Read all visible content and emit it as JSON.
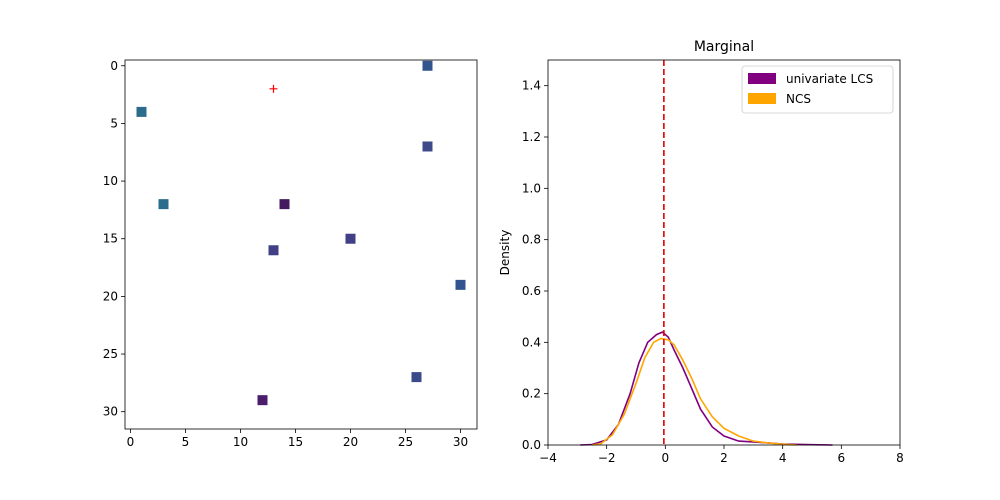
{
  "chart_data": [
    {
      "type": "scatter",
      "title": "",
      "xlabel": "",
      "ylabel": "",
      "xlim": [
        -0.5,
        31.5
      ],
      "ylim": [
        31.5,
        -0.5
      ],
      "y_inverted": true,
      "xticks": [
        0,
        5,
        10,
        15,
        20,
        25,
        30
      ],
      "yticks": [
        0,
        5,
        10,
        15,
        20,
        25,
        30
      ],
      "marker": "square",
      "points": [
        {
          "x": 27,
          "y": 0,
          "color": "#31548f"
        },
        {
          "x": 1,
          "y": 4,
          "color": "#2b6b8c"
        },
        {
          "x": 27,
          "y": 7,
          "color": "#3f4a8a"
        },
        {
          "x": 3,
          "y": 12,
          "color": "#2b6b8c"
        },
        {
          "x": 14,
          "y": 12,
          "color": "#451a5e"
        },
        {
          "x": 20,
          "y": 15,
          "color": "#413f85"
        },
        {
          "x": 13,
          "y": 16,
          "color": "#413f85"
        },
        {
          "x": 30,
          "y": 19,
          "color": "#31548f"
        },
        {
          "x": 26,
          "y": 27,
          "color": "#3b4b8a"
        },
        {
          "x": 12,
          "y": 29,
          "color": "#4a1e6b"
        }
      ],
      "target": {
        "x": 13,
        "y": 2,
        "marker": "+",
        "color": "#ff0000"
      }
    },
    {
      "type": "line",
      "title": "Marginal",
      "xlabel": "",
      "ylabel": "Density",
      "xlim": [
        -4,
        8
      ],
      "ylim": [
        0,
        1.5
      ],
      "xticks": [
        -4,
        -2,
        0,
        2,
        4,
        6,
        8
      ],
      "yticks": [
        0.0,
        0.2,
        0.4,
        0.6,
        0.8,
        1.0,
        1.2,
        1.4
      ],
      "ytick_labels": [
        "0.0",
        "0.2",
        "0.4",
        "0.6",
        "0.8",
        "1.0",
        "1.2",
        "1.4"
      ],
      "legend_position": "top-right",
      "vline": {
        "x": -0.05,
        "color": "#e00000",
        "style": "dashed"
      },
      "series": [
        {
          "name": "univariate LCS",
          "color": "#800080",
          "points": [
            [
              -2.9,
              0.0
            ],
            [
              -2.5,
              0.002
            ],
            [
              -2.0,
              0.02
            ],
            [
              -1.6,
              0.08
            ],
            [
              -1.2,
              0.2
            ],
            [
              -0.9,
              0.32
            ],
            [
              -0.6,
              0.4
            ],
            [
              -0.3,
              0.43
            ],
            [
              -0.1,
              0.44
            ],
            [
              0.1,
              0.42
            ],
            [
              0.3,
              0.37
            ],
            [
              0.6,
              0.3
            ],
            [
              0.9,
              0.22
            ],
            [
              1.2,
              0.14
            ],
            [
              1.6,
              0.07
            ],
            [
              2.0,
              0.035
            ],
            [
              2.5,
              0.015
            ],
            [
              3.0,
              0.012
            ],
            [
              3.5,
              0.008
            ],
            [
              4.0,
              0.004
            ],
            [
              5.0,
              0.001
            ],
            [
              5.7,
              0.0
            ]
          ]
        },
        {
          "name": "NCS",
          "color": "#ffa500",
          "points": [
            [
              -2.5,
              0.0
            ],
            [
              -2.2,
              0.005
            ],
            [
              -1.8,
              0.04
            ],
            [
              -1.4,
              0.12
            ],
            [
              -1.0,
              0.24
            ],
            [
              -0.7,
              0.34
            ],
            [
              -0.4,
              0.4
            ],
            [
              -0.15,
              0.415
            ],
            [
              0.1,
              0.41
            ],
            [
              0.3,
              0.39
            ],
            [
              0.6,
              0.33
            ],
            [
              0.9,
              0.26
            ],
            [
              1.2,
              0.18
            ],
            [
              1.6,
              0.11
            ],
            [
              2.0,
              0.065
            ],
            [
              2.5,
              0.035
            ],
            [
              3.0,
              0.015
            ],
            [
              3.5,
              0.008
            ],
            [
              4.0,
              0.003
            ],
            [
              4.5,
              0.0
            ]
          ]
        }
      ]
    }
  ]
}
